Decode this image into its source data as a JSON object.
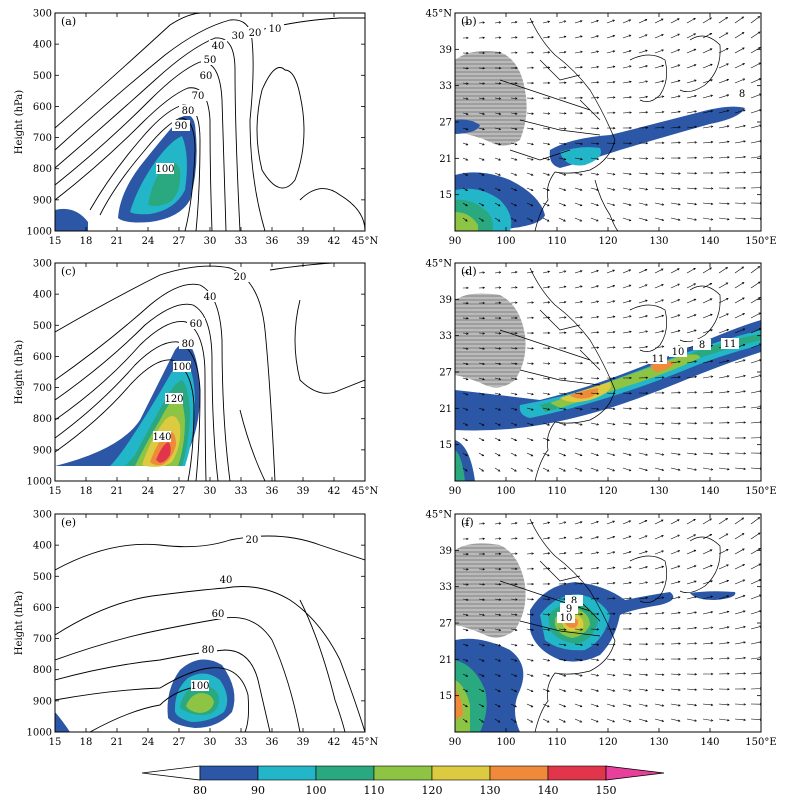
{
  "chart_data": [
    {
      "id": "a",
      "type": "contour",
      "panel_label": "(a)",
      "ylabel": "Height (hPa)",
      "xticks": [
        "15",
        "18",
        "21",
        "24",
        "27",
        "30",
        "33",
        "36",
        "39",
        "42",
        "45°N"
      ],
      "yticks": [
        "1000",
        "900",
        "800",
        "700",
        "600",
        "500",
        "400",
        "300"
      ],
      "xlim": [
        15,
        45
      ],
      "ylim": [
        1000,
        300
      ],
      "contour_labels": [
        "10",
        "20",
        "30",
        "40",
        "50",
        "60",
        "70",
        "80",
        "90",
        "100"
      ],
      "fill_threshold": 80
    },
    {
      "id": "b",
      "type": "map",
      "panel_label": "(b)",
      "xticks": [
        "90",
        "100",
        "110",
        "120",
        "130",
        "140",
        "150°E"
      ],
      "yticks": [
        "15",
        "21",
        "27",
        "33",
        "39",
        "45°N"
      ],
      "xlim": [
        90,
        150
      ],
      "ylim": [
        9,
        45
      ],
      "contour_labels": [
        "8"
      ]
    },
    {
      "id": "c",
      "type": "contour",
      "panel_label": "(c)",
      "ylabel": "Height (hPa)",
      "xticks": [
        "15",
        "18",
        "21",
        "24",
        "27",
        "30",
        "33",
        "36",
        "39",
        "42",
        "45°N"
      ],
      "yticks": [
        "1000",
        "900",
        "800",
        "700",
        "600",
        "500",
        "400",
        "300"
      ],
      "xlim": [
        15,
        45
      ],
      "ylim": [
        1000,
        300
      ],
      "contour_labels": [
        "20",
        "40",
        "60",
        "80",
        "100",
        "120",
        "140"
      ],
      "fill_threshold": 80
    },
    {
      "id": "d",
      "type": "map",
      "panel_label": "(d)",
      "xticks": [
        "90",
        "100",
        "110",
        "120",
        "130",
        "140",
        "150°E"
      ],
      "yticks": [
        "15",
        "21",
        "27",
        "33",
        "39",
        "45°N"
      ],
      "xlim": [
        90,
        150
      ],
      "ylim": [
        9,
        45
      ],
      "contour_labels": [
        "8",
        "10",
        "11",
        "11"
      ]
    },
    {
      "id": "e",
      "type": "contour",
      "panel_label": "(e)",
      "ylabel": "Height (hPa)",
      "xticks": [
        "15",
        "18",
        "21",
        "24",
        "27",
        "30",
        "33",
        "36",
        "39",
        "42",
        "45°N"
      ],
      "yticks": [
        "1000",
        "900",
        "800",
        "700",
        "600",
        "500",
        "400",
        "300"
      ],
      "xlim": [
        15,
        45
      ],
      "ylim": [
        1000,
        300
      ],
      "contour_labels": [
        "20",
        "40",
        "60",
        "80",
        "100"
      ],
      "fill_threshold": 80
    },
    {
      "id": "f",
      "type": "map",
      "panel_label": "(f)",
      "xticks": [
        "90",
        "100",
        "110",
        "120",
        "130",
        "140",
        "150°E"
      ],
      "yticks": [
        "15",
        "21",
        "27",
        "33",
        "39",
        "45°N"
      ],
      "xlim": [
        90,
        150
      ],
      "ylim": [
        9,
        45
      ],
      "contour_labels": [
        "8",
        "9",
        "10"
      ]
    }
  ],
  "colorbar": {
    "labels": [
      "80",
      "90",
      "100",
      "110",
      "120",
      "130",
      "140",
      "150"
    ],
    "colors": [
      "#2c57a6",
      "#22b6c8",
      "#2aa880",
      "#8ec444",
      "#dccb40",
      "#ee8a3a",
      "#e0354a",
      "#e8409a"
    ]
  }
}
